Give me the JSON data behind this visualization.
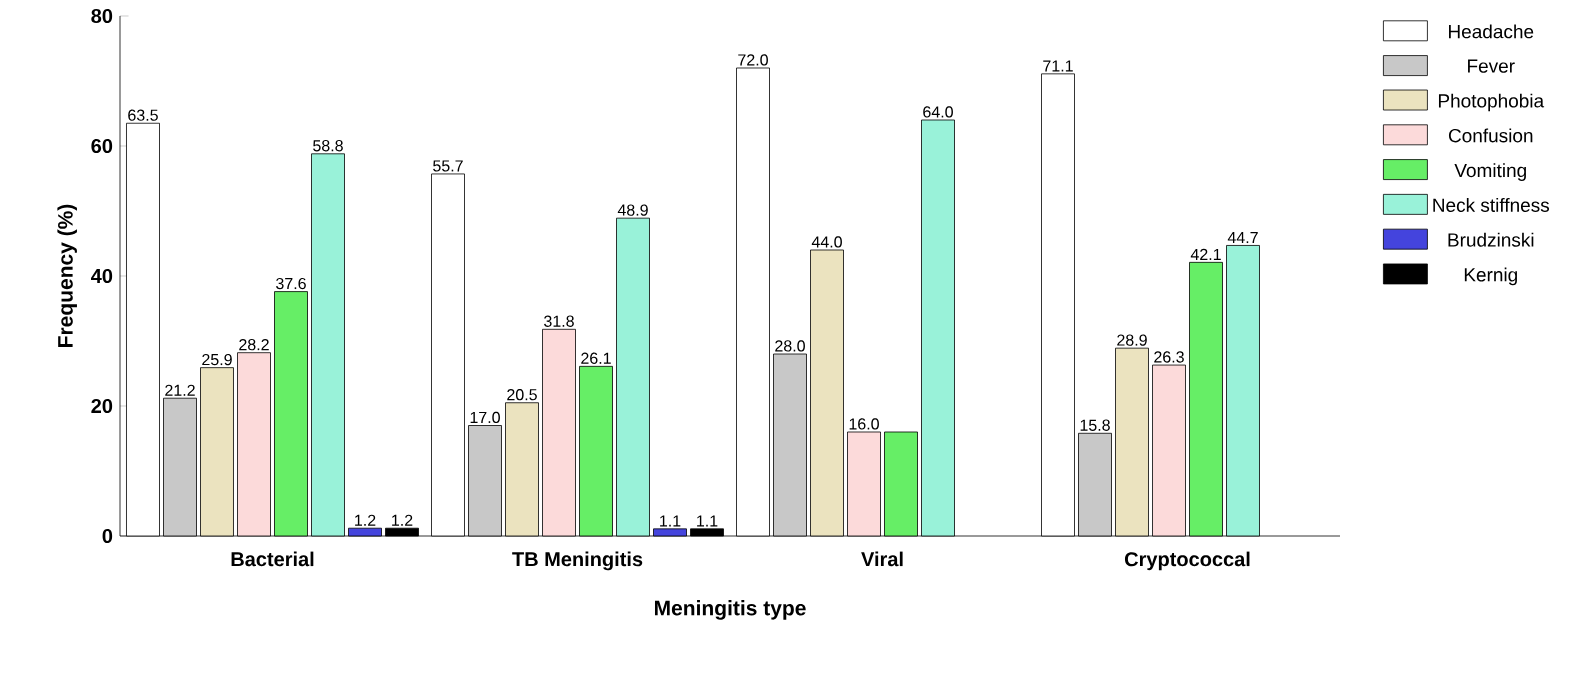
{
  "chart_data": {
    "type": "bar",
    "xlabel": "Meningitis type",
    "ylabel": "Frequency (%)",
    "categories": [
      "Bacterial",
      "TB Meningitis",
      "Viral",
      "Cryptococcal"
    ],
    "series": [
      {
        "name": "Headache",
        "color": "#ffffff",
        "values": [
          63.5,
          55.7,
          72.0,
          71.1
        ],
        "value_labels": [
          "63.5",
          "55.7",
          "72.0",
          "71.1"
        ]
      },
      {
        "name": "Fever",
        "color": "#c8c8c8",
        "values": [
          21.2,
          17.0,
          28.0,
          15.8
        ],
        "value_labels": [
          "21.2",
          "17.0",
          "28.0",
          "15.8"
        ]
      },
      {
        "name": "Photophobia",
        "color": "#ebe3bf",
        "values": [
          25.9,
          20.5,
          44.0,
          28.9
        ],
        "value_labels": [
          "25.9",
          "20.5",
          "44.0",
          "28.9"
        ]
      },
      {
        "name": "Confusion",
        "color": "#fcdada",
        "values": [
          28.2,
          31.8,
          16.0,
          26.3
        ],
        "value_labels": [
          "28.2",
          "31.8",
          "16.0",
          "26.3"
        ]
      },
      {
        "name": "Vomiting",
        "color": "#66ee66",
        "values": [
          37.6,
          26.1,
          16.0,
          42.1
        ],
        "value_labels": [
          "37.6",
          "26.1",
          null,
          "42.1"
        ]
      },
      {
        "name": "Neck stiffness",
        "color": "#99f2d9",
        "values": [
          58.8,
          48.9,
          64.0,
          44.7
        ],
        "value_labels": [
          "58.8",
          "48.9",
          "64.0",
          "44.7"
        ]
      },
      {
        "name": "Brudzinski",
        "color": "#4444dd",
        "values": [
          1.2,
          1.1,
          null,
          null
        ],
        "value_labels": [
          "1.2",
          "1.1",
          null,
          null
        ]
      },
      {
        "name": "Kernig",
        "color": "#000000",
        "values": [
          1.2,
          1.1,
          null,
          null
        ],
        "value_labels": [
          "1.2",
          "1.1",
          null,
          null
        ]
      }
    ],
    "ylim": [
      0,
      80
    ],
    "yticks": [
      0,
      20,
      40,
      60,
      80
    ],
    "legend": "right",
    "grid": false
  }
}
